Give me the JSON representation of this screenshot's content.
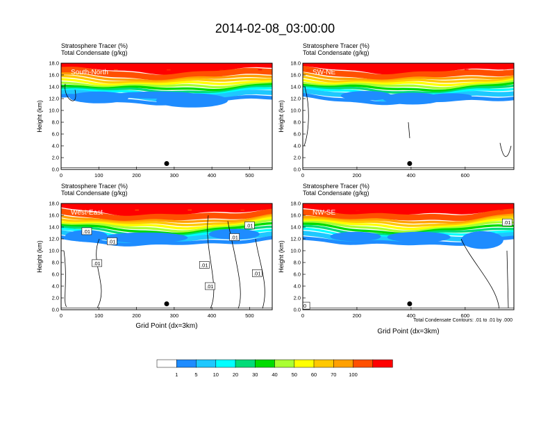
{
  "title": "2014-02-08_03:00:00",
  "chart_data": [
    {
      "type": "heatmap",
      "panel_label": "South-North",
      "header_lines": [
        "Stratosphere Tracer   (%)",
        "Total Condensate   (g/kg)"
      ],
      "ylabel": "Height (km)",
      "xlabel": "",
      "xlim": [
        0,
        560
      ],
      "ylim": [
        0,
        18
      ],
      "x_ticks": [
        "0",
        "100",
        "200",
        "300",
        "400",
        "500"
      ],
      "y_ticks": [
        "0.0",
        "2.0",
        "4.0",
        "6.0",
        "8.0",
        "10.0",
        "12.0",
        "14.0",
        "16.0",
        "18.0"
      ],
      "marker": {
        "x": 280,
        "y": 1.0
      },
      "contour_labels": []
    },
    {
      "type": "heatmap",
      "panel_label": "SW-NE",
      "header_lines": [
        "Stratosphere Tracer   (%)",
        "Total Condensate   (g/kg)"
      ],
      "ylabel": "Height (km)",
      "xlabel": "",
      "xlim": [
        0,
        780
      ],
      "ylim": [
        0,
        18
      ],
      "x_ticks": [
        "0",
        "200",
        "400",
        "600"
      ],
      "y_ticks": [
        "0.0",
        "2.0",
        "4.0",
        "6.0",
        "8.0",
        "10.0",
        "12.0",
        "14.0",
        "16.0",
        "18.0"
      ],
      "marker": {
        "x": 395,
        "y": 1.0
      },
      "contour_labels": []
    },
    {
      "type": "heatmap",
      "panel_label": "West-East",
      "header_lines": [
        "Stratosphere Tracer   (%)",
        "Total Condensate   (g/kg)"
      ],
      "ylabel": "Height (km)",
      "xlabel": "Grid Point (dx=3km)",
      "xlim": [
        0,
        560
      ],
      "ylim": [
        0,
        18
      ],
      "x_ticks": [
        "0",
        "100",
        "200",
        "300",
        "400",
        "500"
      ],
      "y_ticks": [
        "0.0",
        "2.0",
        "4.0",
        "6.0",
        "8.0",
        "10.0",
        "12.0",
        "14.0",
        "16.0",
        "18.0"
      ],
      "marker": {
        "x": 280,
        "y": 1.0
      },
      "contour_labels": [
        {
          "text": ".01",
          "x": 68,
          "y": 13.3
        },
        {
          "text": ".01",
          "x": 135,
          "y": 11.6
        },
        {
          "text": ".01",
          "x": 95,
          "y": 7.9
        },
        {
          "text": ".01",
          "x": 380,
          "y": 7.6
        },
        {
          "text": ".01",
          "x": 395,
          "y": 4.0
        },
        {
          "text": ".01",
          "x": 460,
          "y": 12.3
        },
        {
          "text": ".01",
          "x": 520,
          "y": 6.2
        },
        {
          "text": ".01",
          "x": 500,
          "y": 14.3
        }
      ]
    },
    {
      "type": "heatmap",
      "panel_label": "NW-SE",
      "header_lines": [
        "Stratosphere Tracer   (%)",
        "Total Condensate   (g/kg)"
      ],
      "ylabel": "Height (km)",
      "xlabel": "Grid Point (dx=3km)",
      "xlim": [
        0,
        780
      ],
      "ylim": [
        0,
        18
      ],
      "x_ticks": [
        "0",
        "200",
        "400",
        "600"
      ],
      "y_ticks": [
        "0.0",
        "2.0",
        "4.0",
        "6.0",
        "8.0",
        "10.0",
        "12.0",
        "14.0",
        "16.0",
        "18.0"
      ],
      "marker": {
        "x": 395,
        "y": 1.0
      },
      "contour_labels": [
        {
          "text": ".01",
          "x": 755,
          "y": 14.8
        },
        {
          "text": "0",
          "x": 8,
          "y": 0.7
        }
      ]
    }
  ],
  "contour_note": "Total Condensate Contours: .01 to .01 by .000",
  "colorbar": {
    "labels": [
      "1",
      "5",
      "10",
      "20",
      "30",
      "40",
      "50",
      "60",
      "70",
      "100"
    ],
    "colors": [
      "#ffffff",
      "#1e8cff",
      "#1ec8ff",
      "#00ffff",
      "#00dc78",
      "#00dc00",
      "#aaff32",
      "#ffff00",
      "#ffc800",
      "#ffa000",
      "#ff5000",
      "#ff0000"
    ]
  }
}
